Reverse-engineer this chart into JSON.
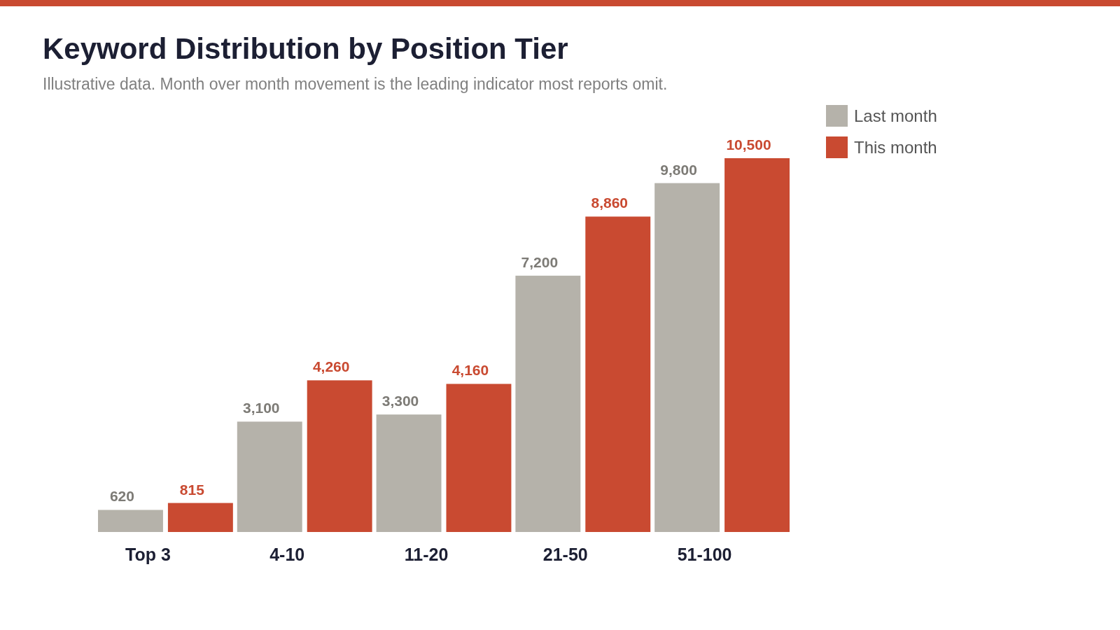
{
  "chart_data": {
    "type": "bar",
    "title": "Keyword Distribution by Position Tier",
    "subtitle": "Illustrative data. Month over month movement is the leading indicator most reports omit.",
    "categories": [
      "Top 3",
      "4-10",
      "11-20",
      "21-50",
      "51-100"
    ],
    "series": [
      {
        "name": "Last month",
        "color": "#b5b2aa",
        "values": [
          620,
          3100,
          3300,
          7200,
          9800
        ],
        "value_labels": [
          "620",
          "3,100",
          "3,300",
          "7,200",
          "9,800"
        ]
      },
      {
        "name": "This month",
        "color": "#c94a31",
        "values": [
          815,
          4260,
          4160,
          8860,
          10500
        ],
        "value_labels": [
          "815",
          "4,260",
          "4,160",
          "8,860",
          "10,500"
        ]
      }
    ],
    "legend": "top right",
    "grid": false
  }
}
